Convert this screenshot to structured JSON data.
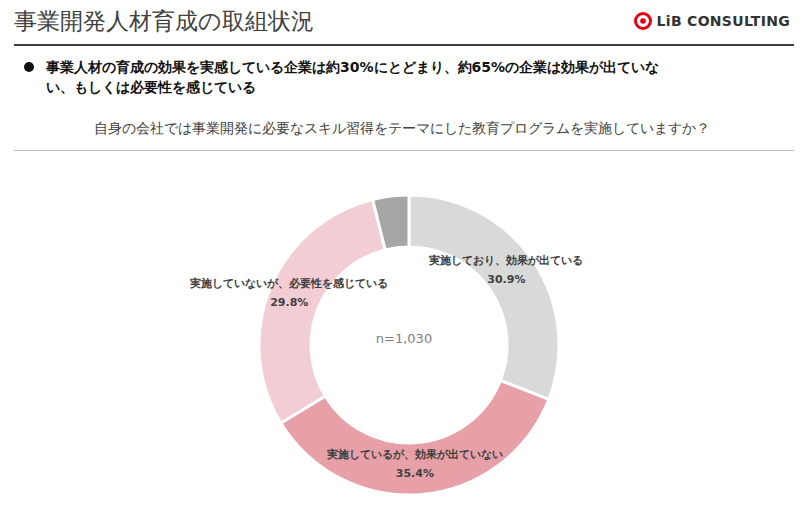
{
  "chart_data": {
    "type": "donut",
    "title": "事業開発人材育成の取組状況",
    "subtitle": [
      "事業人材の育成の効果を実感している企業は約30%にとどまり、約65%の企業は効果が出ていな",
      "い、もしくは必要性を感じている"
    ],
    "question": "自身の会社では事業開発に必要なスキル習得をテーマにした教育プログラムを実施していますか？",
    "annotation": "n=1,030",
    "source": "LiB CONSULTING",
    "categories": [
      "実施しており、効果が出ている",
      "実施しているが、効果が出ていない",
      "実施していないが、必要性を感じている",
      null
    ],
    "values": [
      30.9,
      35.4,
      29.8,
      3.9
    ],
    "value_labels": [
      "30.9%",
      "35.4%",
      "29.8%",
      null
    ],
    "colors": [
      "#d9d9d9",
      "#e8a0a8",
      "#f2cdd3",
      "#a6a6a6"
    ],
    "data_labels": true
  }
}
